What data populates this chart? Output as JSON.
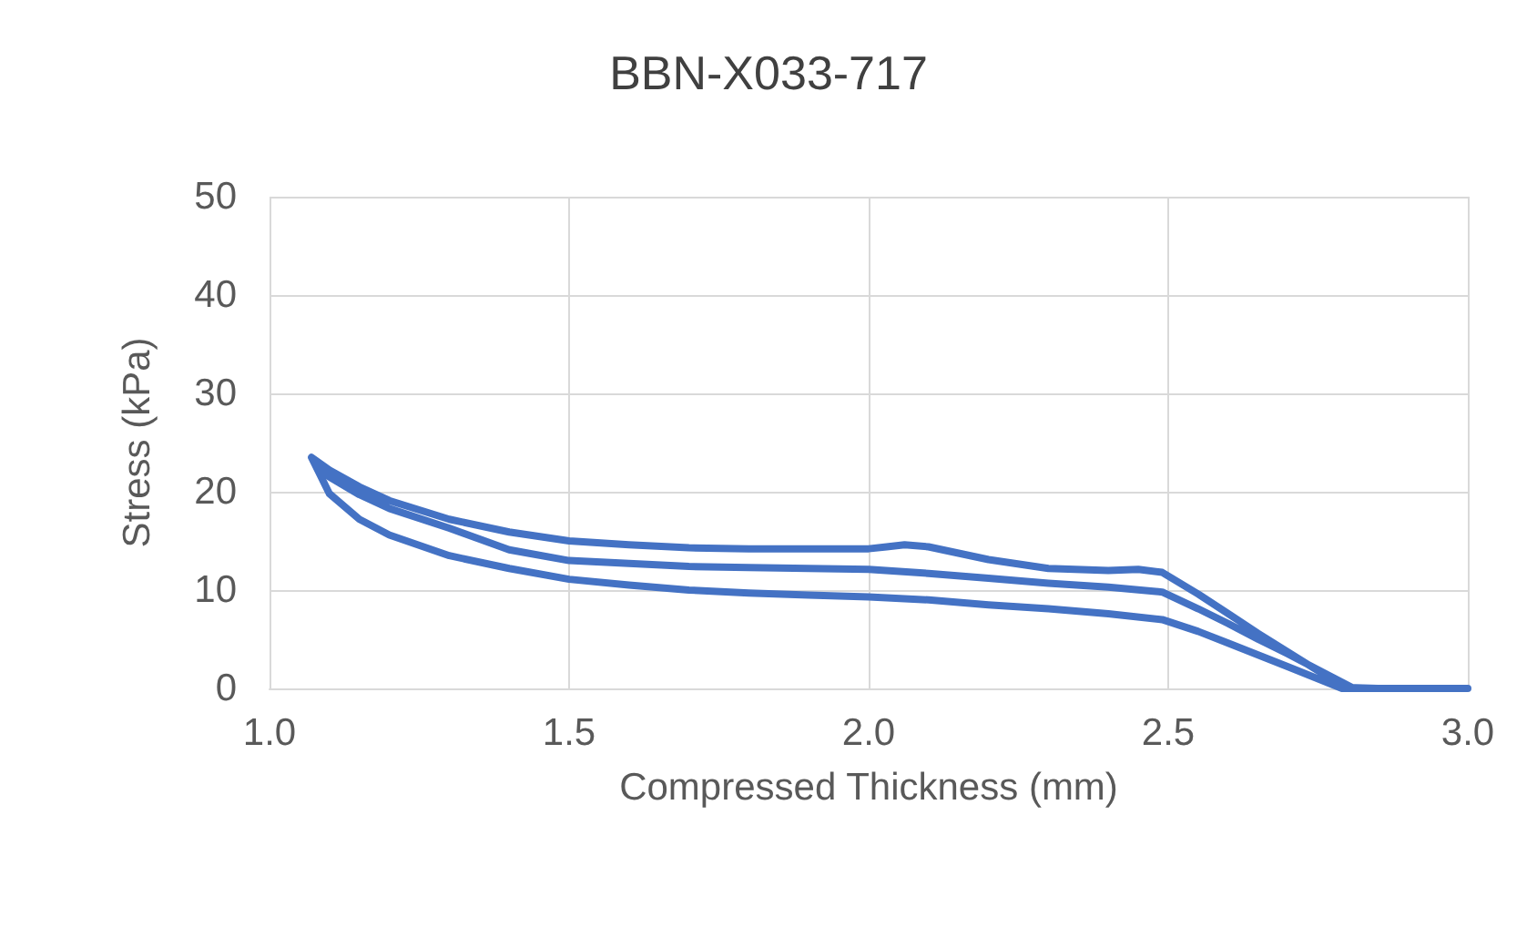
{
  "chart_data": {
    "type": "line",
    "title": "BBN-X033-717",
    "xlabel": "Compressed Thickness (mm)",
    "ylabel": "Stress (kPa)",
    "xlim": [
      1.0,
      3.0
    ],
    "xticks": [
      {
        "value": 1.0,
        "label": "1.0"
      },
      {
        "value": 1.5,
        "label": "1.5"
      },
      {
        "value": 2.0,
        "label": "2.0"
      },
      {
        "value": 2.5,
        "label": "2.5"
      },
      {
        "value": 3.0,
        "label": "3.0"
      }
    ],
    "ylim": [
      0,
      50
    ],
    "yticks": [
      0,
      10,
      20,
      30,
      40,
      50
    ],
    "grid": true,
    "marker": "none",
    "line_style": "solid",
    "series": [
      {
        "color": "#4472c4",
        "x": [
          3.0,
          2.9,
          2.85,
          2.8,
          2.75,
          2.7,
          2.65,
          2.6,
          2.55,
          2.49,
          2.45,
          2.4,
          2.3,
          2.2,
          2.1,
          2.06,
          2.03,
          2.0,
          1.9,
          1.8,
          1.7,
          1.6,
          1.5,
          1.4,
          1.3,
          1.2,
          1.15,
          1.1,
          1.07,
          1.1,
          1.15,
          1.2,
          1.3,
          1.4,
          1.5,
          1.6,
          1.7,
          1.8,
          1.9,
          2.0,
          2.1,
          2.2,
          2.3,
          2.4,
          2.49,
          2.55,
          2.6,
          2.65,
          2.7,
          2.79,
          2.9,
          2.81,
          2.75,
          2.7,
          2.65,
          2.6,
          2.55,
          2.49,
          2.4,
          2.3,
          2.2,
          2.1,
          2.0,
          1.9,
          1.8,
          1.7,
          1.6,
          1.5,
          1.4,
          1.3,
          1.2,
          1.15,
          1.1,
          1.08
        ],
        "values": [
          0,
          0,
          0,
          0.1,
          1.8,
          3.7,
          5.6,
          7.6,
          9.6,
          11.8,
          12.1,
          12.0,
          12.2,
          13.1,
          14.4,
          14.6,
          14.4,
          14.2,
          14.2,
          14.2,
          14.3,
          14.6,
          15.0,
          15.9,
          17.2,
          19.1,
          20.5,
          22.2,
          23.5,
          19.8,
          17.2,
          15.6,
          13.5,
          12.2,
          11.1,
          10.5,
          10.0,
          9.7,
          9.5,
          9.3,
          9.0,
          8.5,
          8.1,
          7.6,
          7.0,
          5.8,
          4.6,
          3.4,
          2.2,
          0,
          0,
          0,
          1.9,
          3.5,
          5.0,
          6.6,
          8.1,
          9.8,
          10.3,
          10.7,
          11.2,
          11.7,
          12.1,
          12.2,
          12.3,
          12.4,
          12.7,
          13.0,
          14.1,
          16.3,
          18.3,
          19.7,
          21.5,
          22.8
        ]
      }
    ]
  }
}
